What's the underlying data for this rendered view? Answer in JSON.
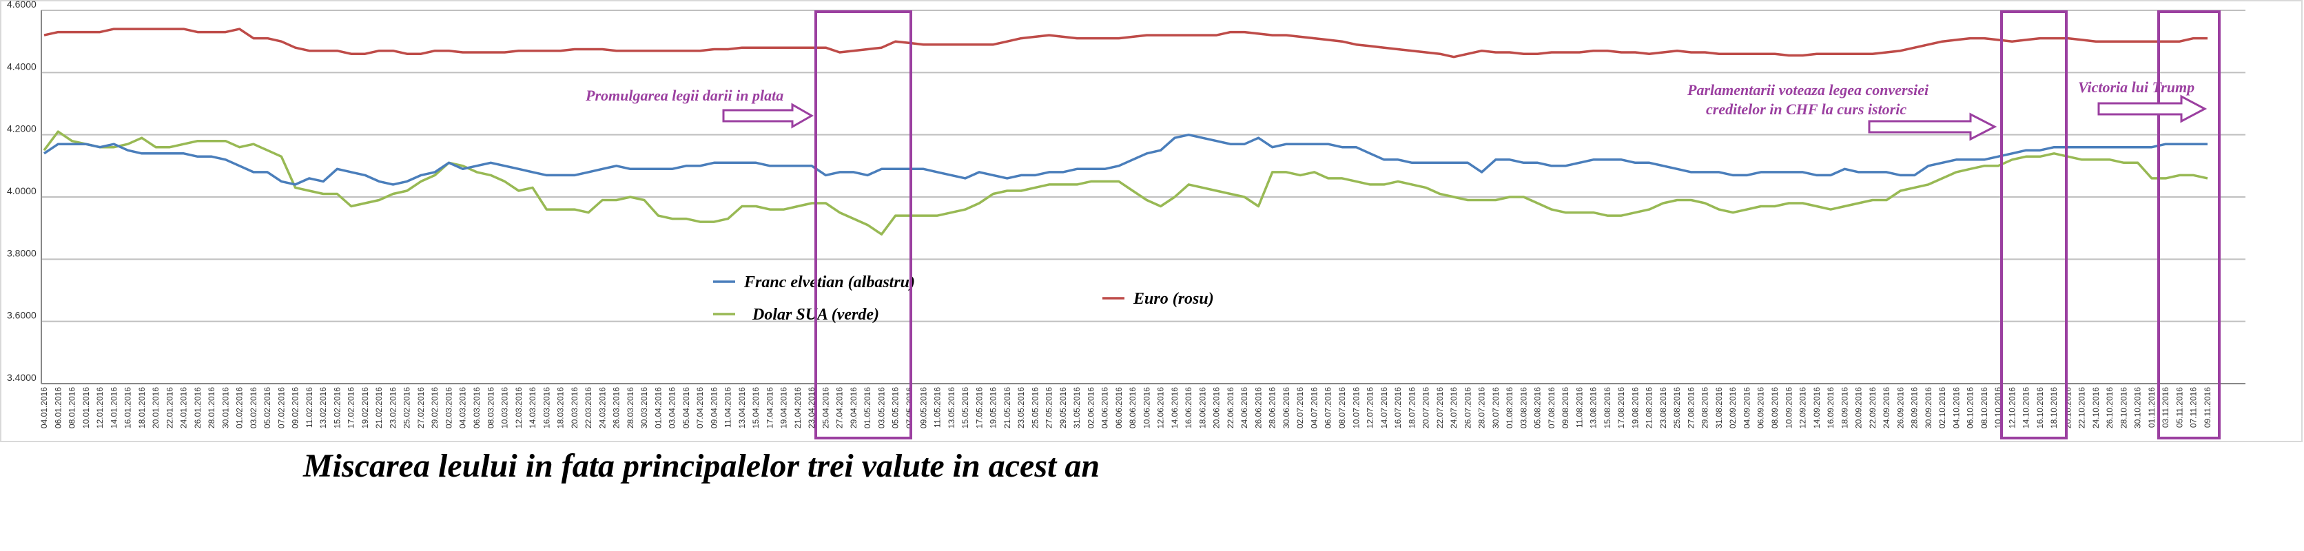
{
  "chart_data": {
    "type": "line",
    "title": "Miscarea leului in fata principalelor trei valute in acest an",
    "annotations": [
      "Promulgarea legii darii in plata",
      "Parlamentarii voteaza legea conversiei",
      "creditelor in CHF la curs istoric",
      "Victoria lui Trump"
    ],
    "categories": [
      "04.01.2016",
      "06.01.2016",
      "08.01.2016",
      "10.01.2016",
      "12.01.2016",
      "14.01.2016",
      "16.01.2016",
      "18.01.2016",
      "20.01.2016",
      "22.01.2016",
      "24.01.2016",
      "26.01.2016",
      "28.01.2016",
      "30.01.2016",
      "01.02.2016",
      "03.02.2016",
      "05.02.2016",
      "07.02.2016",
      "09.02.2016",
      "11.02.2016",
      "13.02.2016",
      "15.02.2016",
      "17.02.2016",
      "19.02.2016",
      "21.02.2016",
      "23.02.2016",
      "25.02.2016",
      "27.02.2016",
      "29.02.2016",
      "02.03.2016",
      "04.03.2016",
      "06.03.2016",
      "08.03.2016",
      "10.03.2016",
      "12.03.2016",
      "14.03.2016",
      "16.03.2016",
      "18.03.2016",
      "20.03.2016",
      "22.03.2016",
      "24.03.2016",
      "26.03.2016",
      "28.03.2016",
      "30.03.2016",
      "01.04.2016",
      "03.04.2016",
      "05.04.2016",
      "07.04.2016",
      "09.04.2016",
      "11.04.2016",
      "13.04.2016",
      "15.04.2016",
      "17.04.2016",
      "19.04.2016",
      "21.04.2016",
      "23.04.2016",
      "25.04.2016",
      "27.04.2016",
      "29.04.2016",
      "01.05.2016",
      "03.05.2016",
      "05.05.2016",
      "07.05.2016",
      "09.05.2016",
      "11.05.2016",
      "13.05.2016",
      "15.05.2016",
      "17.05.2016",
      "19.05.2016",
      "21.05.2016",
      "23.05.2016",
      "25.05.2016",
      "27.05.2016",
      "29.05.2016",
      "31.05.2016",
      "02.06.2016",
      "04.06.2016",
      "06.06.2016",
      "08.06.2016",
      "10.06.2016",
      "12.06.2016",
      "14.06.2016",
      "16.06.2016",
      "18.06.2016",
      "20.06.2016",
      "22.06.2016",
      "24.06.2016",
      "26.06.2016",
      "28.06.2016",
      "30.06.2016",
      "02.07.2016",
      "04.07.2016",
      "06.07.2016",
      "08.07.2016",
      "10.07.2016",
      "12.07.2016",
      "14.07.2016",
      "16.07.2016",
      "18.07.2016",
      "20.07.2016",
      "22.07.2016",
      "24.07.2016",
      "26.07.2016",
      "28.07.2016",
      "30.07.2016",
      "01.08.2016",
      "03.08.2016",
      "05.08.2016",
      "07.08.2016",
      "09.08.2016",
      "11.08.2016",
      "13.08.2016",
      "15.08.2016",
      "17.08.2016",
      "19.08.2016",
      "21.08.2016",
      "23.08.2016",
      "25.08.2016",
      "27.08.2016",
      "29.08.2016",
      "31.08.2016",
      "02.09.2016",
      "04.09.2016",
      "06.09.2016",
      "08.09.2016",
      "10.09.2016",
      "12.09.2016",
      "14.09.2016",
      "16.09.2016",
      "18.09.2016",
      "20.09.2016",
      "22.09.2016",
      "24.09.2016",
      "26.09.2016",
      "28.09.2016",
      "30.09.2016",
      "02.10.2016",
      "04.10.2016",
      "06.10.2016",
      "08.10.2016",
      "10.10.2016",
      "12.10.2016",
      "14.10.2016",
      "16.10.2016",
      "18.10.2016",
      "20.10.2016",
      "22.10.2016",
      "24.10.2016",
      "26.10.2016",
      "28.10.2016",
      "30.10.2016",
      "01.11.2016",
      "03.11.2016",
      "05.11.2016",
      "07.11.2016",
      "09.11.2016"
    ],
    "series": [
      {
        "name": "Franc elvetian (albastru)",
        "color": "#4a7ebb",
        "values": [
          4.14,
          4.17,
          4.17,
          4.17,
          4.16,
          4.17,
          4.15,
          4.14,
          4.14,
          4.14,
          4.14,
          4.13,
          4.13,
          4.12,
          4.1,
          4.08,
          4.08,
          4.05,
          4.04,
          4.06,
          4.05,
          4.09,
          4.08,
          4.07,
          4.05,
          4.04,
          4.05,
          4.07,
          4.08,
          4.11,
          4.09,
          4.1,
          4.11,
          4.1,
          4.09,
          4.08,
          4.07,
          4.07,
          4.07,
          4.08,
          4.09,
          4.1,
          4.09,
          4.09,
          4.09,
          4.09,
          4.1,
          4.1,
          4.11,
          4.11,
          4.11,
          4.11,
          4.1,
          4.1,
          4.1,
          4.1,
          4.07,
          4.08,
          4.08,
          4.07,
          4.09,
          4.09,
          4.09,
          4.09,
          4.08,
          4.07,
          4.06,
          4.08,
          4.07,
          4.06,
          4.07,
          4.07,
          4.08,
          4.08,
          4.09,
          4.09,
          4.09,
          4.1,
          4.12,
          4.14,
          4.15,
          4.19,
          4.2,
          4.19,
          4.18,
          4.17,
          4.17,
          4.19,
          4.16,
          4.17,
          4.17,
          4.17,
          4.17,
          4.16,
          4.16,
          4.14,
          4.12,
          4.12,
          4.11,
          4.11,
          4.11,
          4.11,
          4.11,
          4.08,
          4.12,
          4.12,
          4.11,
          4.11,
          4.1,
          4.1,
          4.11,
          4.12,
          4.12,
          4.12,
          4.11,
          4.11,
          4.1,
          4.09,
          4.08,
          4.08,
          4.08,
          4.07,
          4.07,
          4.08,
          4.08,
          4.08,
          4.08,
          4.07,
          4.07,
          4.09,
          4.08,
          4.08,
          4.08,
          4.07,
          4.07,
          4.1,
          4.11,
          4.12,
          4.12,
          4.12,
          4.13,
          4.14,
          4.15,
          4.15,
          4.16,
          4.16,
          4.16,
          4.16,
          4.16,
          4.16,
          4.16,
          4.16,
          4.17,
          4.17,
          4.17,
          4.17
        ]
      },
      {
        "name": "Dolar SUA (verde)",
        "color": "#98b954",
        "values": [
          4.15,
          4.21,
          4.18,
          4.17,
          4.16,
          4.16,
          4.17,
          4.19,
          4.16,
          4.16,
          4.17,
          4.18,
          4.18,
          4.18,
          4.16,
          4.17,
          4.15,
          4.13,
          4.03,
          4.02,
          4.01,
          4.01,
          3.97,
          3.98,
          3.99,
          4.01,
          4.02,
          4.05,
          4.07,
          4.11,
          4.1,
          4.08,
          4.07,
          4.05,
          4.02,
          4.03,
          3.96,
          3.96,
          3.96,
          3.95,
          3.99,
          3.99,
          4.0,
          3.99,
          3.94,
          3.93,
          3.93,
          3.92,
          3.92,
          3.93,
          3.97,
          3.97,
          3.96,
          3.96,
          3.97,
          3.98,
          3.98,
          3.95,
          3.93,
          3.91,
          3.88,
          3.94,
          3.94,
          3.94,
          3.94,
          3.95,
          3.96,
          3.98,
          4.01,
          4.02,
          4.02,
          4.03,
          4.04,
          4.04,
          4.04,
          4.05,
          4.05,
          4.05,
          4.02,
          3.99,
          3.97,
          4.0,
          4.04,
          4.03,
          4.02,
          4.01,
          4.0,
          3.97,
          4.08,
          4.08,
          4.07,
          4.08,
          4.06,
          4.06,
          4.05,
          4.04,
          4.04,
          4.05,
          4.04,
          4.03,
          4.01,
          4.0,
          3.99,
          3.99,
          3.99,
          4.0,
          4.0,
          3.98,
          3.96,
          3.95,
          3.95,
          3.95,
          3.94,
          3.94,
          3.95,
          3.96,
          3.98,
          3.99,
          3.99,
          3.98,
          3.96,
          3.95,
          3.96,
          3.97,
          3.97,
          3.98,
          3.98,
          3.97,
          3.96,
          3.97,
          3.98,
          3.99,
          3.99,
          4.02,
          4.03,
          4.04,
          4.06,
          4.08,
          4.09,
          4.1,
          4.1,
          4.12,
          4.13,
          4.13,
          4.14,
          4.13,
          4.12,
          4.12,
          4.12,
          4.11,
          4.11,
          4.06,
          4.06,
          4.07,
          4.07,
          4.06
        ]
      },
      {
        "name": "Euro (rosu)",
        "color": "#be4b48",
        "values": [
          4.52,
          4.53,
          4.53,
          4.53,
          4.53,
          4.54,
          4.54,
          4.54,
          4.54,
          4.54,
          4.54,
          4.53,
          4.53,
          4.53,
          4.54,
          4.51,
          4.51,
          4.5,
          4.48,
          4.47,
          4.47,
          4.47,
          4.46,
          4.46,
          4.47,
          4.47,
          4.46,
          4.46,
          4.47,
          4.47,
          4.465,
          4.465,
          4.465,
          4.465,
          4.47,
          4.47,
          4.47,
          4.47,
          4.475,
          4.475,
          4.475,
          4.47,
          4.47,
          4.47,
          4.47,
          4.47,
          4.47,
          4.47,
          4.475,
          4.475,
          4.48,
          4.48,
          4.48,
          4.48,
          4.48,
          4.48,
          4.48,
          4.465,
          4.47,
          4.475,
          4.48,
          4.5,
          4.495,
          4.49,
          4.49,
          4.49,
          4.49,
          4.49,
          4.49,
          4.5,
          4.51,
          4.515,
          4.52,
          4.515,
          4.51,
          4.51,
          4.51,
          4.51,
          4.515,
          4.52,
          4.52,
          4.52,
          4.52,
          4.52,
          4.52,
          4.53,
          4.53,
          4.525,
          4.52,
          4.52,
          4.515,
          4.51,
          4.505,
          4.5,
          4.49,
          4.485,
          4.48,
          4.475,
          4.47,
          4.465,
          4.46,
          4.45,
          4.46,
          4.47,
          4.465,
          4.465,
          4.46,
          4.46,
          4.465,
          4.465,
          4.465,
          4.47,
          4.47,
          4.465,
          4.465,
          4.46,
          4.465,
          4.47,
          4.465,
          4.465,
          4.46,
          4.46,
          4.46,
          4.46,
          4.46,
          4.455,
          4.455,
          4.46,
          4.46,
          4.46,
          4.46,
          4.46,
          4.465,
          4.47,
          4.48,
          4.49,
          4.5,
          4.505,
          4.51,
          4.51,
          4.505,
          4.5,
          4.505,
          4.51,
          4.51,
          4.51,
          4.505,
          4.5,
          4.5,
          4.5,
          4.5,
          4.5,
          4.5,
          4.5,
          4.51,
          4.51
        ]
      }
    ],
    "ylim": [
      3.4,
      4.6
    ],
    "yticks": [
      {
        "value": 3.4,
        "label": "3.4000"
      },
      {
        "value": 3.6,
        "label": "3.6000"
      },
      {
        "value": 3.8,
        "label": "3.8000"
      },
      {
        "value": 4.0,
        "label": "4.0000"
      },
      {
        "value": 4.2,
        "label": "4.2000"
      },
      {
        "value": 4.4,
        "label": "4.4000"
      },
      {
        "value": 4.6,
        "label": "4.6000"
      }
    ],
    "grid": true
  }
}
